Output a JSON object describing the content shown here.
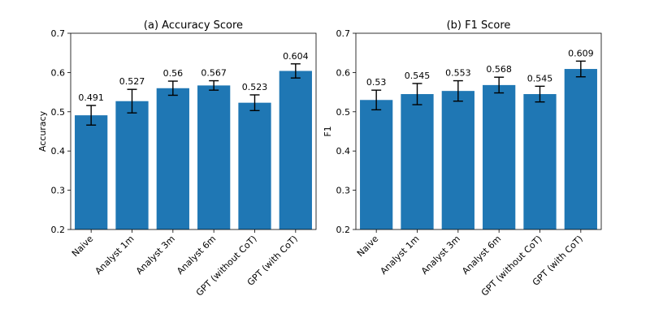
{
  "chart_data": [
    {
      "type": "bar",
      "title": "(a) Accuracy Score",
      "xlabel": "",
      "ylabel": "Accuracy",
      "ylim": [
        0.2,
        0.7
      ],
      "yticks": [
        "0.2",
        "0.3",
        "0.4",
        "0.5",
        "0.6",
        "0.7"
      ],
      "categories": [
        "Naive",
        "Analyst 1m",
        "Analyst 3m",
        "Analyst 6m",
        "GPT (without CoT)",
        "GPT (with CoT)"
      ],
      "values": [
        0.491,
        0.527,
        0.56,
        0.567,
        0.523,
        0.604
      ],
      "value_labels": [
        "0.491",
        "0.527",
        "0.56",
        "0.567",
        "0.523",
        "0.604"
      ],
      "errors": [
        0.025,
        0.03,
        0.018,
        0.012,
        0.02,
        0.018
      ],
      "bar_color": "#1f77b4",
      "grid": false,
      "legend": "none"
    },
    {
      "type": "bar",
      "title": "(b) F1 Score",
      "xlabel": "",
      "ylabel": "F1",
      "ylim": [
        0.2,
        0.7
      ],
      "yticks": [
        "0.2",
        "0.3",
        "0.4",
        "0.5",
        "0.6",
        "0.7"
      ],
      "categories": [
        "Naive",
        "Analyst 1m",
        "Analyst 3m",
        "Analyst 6m",
        "GPT (without CoT)",
        "GPT (with CoT)"
      ],
      "values": [
        0.53,
        0.545,
        0.553,
        0.568,
        0.545,
        0.609
      ],
      "value_labels": [
        "0.53",
        "0.545",
        "0.553",
        "0.568",
        "0.545",
        "0.609"
      ],
      "errors": [
        0.025,
        0.027,
        0.026,
        0.02,
        0.02,
        0.02
      ],
      "bar_color": "#1f77b4",
      "grid": false,
      "legend": "none"
    }
  ]
}
